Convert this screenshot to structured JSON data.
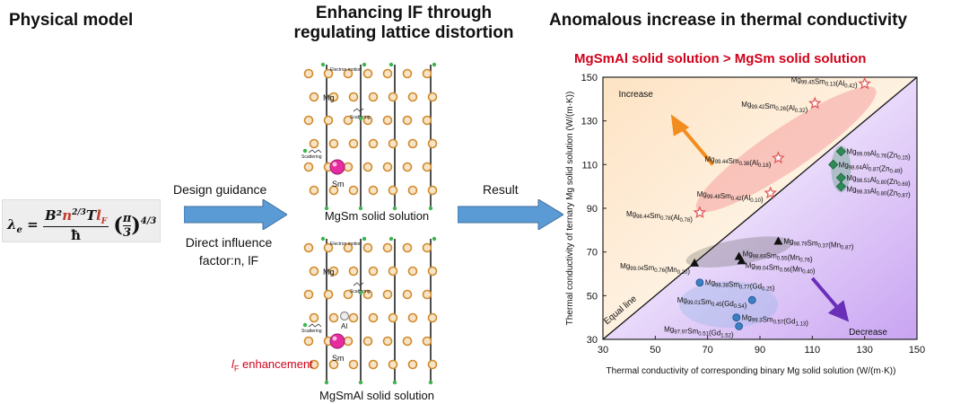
{
  "headers": {
    "physical_model": "Physical model",
    "enhancing_line1": "Enhancing lF through",
    "enhancing_line2": "regulating lattice distortion",
    "anomalous": "Anomalous increase in thermal conductivity"
  },
  "formula": {
    "lhs": "λe",
    "rhs": "= B²n^(2/3)TlF / ħ · (π/3)^(4/3)"
  },
  "flow": {
    "design_guidance": "Design guidance",
    "direct_influence_line1": "Direct influence",
    "direct_influence_line2": "factor:n, lF",
    "result": "Result"
  },
  "lattice": {
    "top_caption": "MgSm solid solution",
    "bottom_caption": "MgSmAl solid solution",
    "electron_motion": "Electron motion",
    "mg": "Mg",
    "sm": "Sm",
    "al": "Al",
    "scattering": "Scattering",
    "lf_enhancement": "lF enhancement"
  },
  "comparison_title": "MgSmAl solid solution > MgSm solid solution",
  "chart_data": {
    "type": "scatter",
    "xlabel": "Thermal conductivity of corresponding binary Mg solid solution (W/(m·K))",
    "ylabel": "Thermal conductivity of ternary Mg solid solution (W/(m·K))",
    "xlim": [
      30,
      150
    ],
    "ylim": [
      30,
      150
    ],
    "xticks": [
      30,
      50,
      70,
      90,
      110,
      130,
      150
    ],
    "yticks": [
      30,
      50,
      70,
      90,
      110,
      130,
      150
    ],
    "annotations": {
      "increase": "Increase",
      "decrease": "Decrease",
      "equal_line": "Equal line"
    },
    "groups": [
      {
        "element": "Al",
        "marker": "star",
        "color": "#e05a5a",
        "points": [
          {
            "x": 130,
            "y": 147,
            "label": "Mg99.45Sm0.13(Al0.42)"
          },
          {
            "x": 111,
            "y": 138,
            "label": "Mg99.42Sm0.26(Al0.32)"
          },
          {
            "x": 97,
            "y": 113,
            "label": "Mg99.44Sm0.38(Al0.18)"
          },
          {
            "x": 94,
            "y": 97,
            "label": "Mg99.48Sm0.42(Al0.10)"
          },
          {
            "x": 67,
            "y": 88,
            "label": "Mg98.44Sm0.78(Al0.78)"
          }
        ]
      },
      {
        "element": "Zn",
        "marker": "diamond",
        "color": "#2e8b57",
        "points": [
          {
            "x": 121,
            "y": 116,
            "label": "Mg99.09Al0.76(Zn0.15)"
          },
          {
            "x": 118,
            "y": 110,
            "label": "Mg98.64Al0.87(Zn0.49)"
          },
          {
            "x": 121,
            "y": 104,
            "label": "Mg98.51Al0.80(Zn0.69)"
          },
          {
            "x": 121,
            "y": 100,
            "label": "Mg98.33Al0.80(Zn0.87)"
          }
        ]
      },
      {
        "element": "Mn",
        "marker": "triangle",
        "color": "#111111",
        "points": [
          {
            "x": 97,
            "y": 75,
            "label": "Mg98.79Sm0.37(Mn0.87)"
          },
          {
            "x": 82,
            "y": 68,
            "label": "Mg98.69Sm0.55(Mn0.76)"
          },
          {
            "x": 83,
            "y": 66,
            "label": "Mg99.04Sm0.56(Mn0.40)"
          },
          {
            "x": 65,
            "y": 65,
            "label": "Mg99.04Sm0.76(Mn0.20)"
          }
        ]
      },
      {
        "element": "Gd",
        "marker": "circle",
        "color": "#3b7fc4",
        "points": [
          {
            "x": 67,
            "y": 56,
            "label": "Mg98.38Sm0.77(Gd0.25)"
          },
          {
            "x": 87,
            "y": 48,
            "label": "Mg99.01Sm0.45(Gd0.54)"
          },
          {
            "x": 81,
            "y": 40,
            "label": "Mg99.3Sm0.57(Gd1.13)"
          },
          {
            "x": 82,
            "y": 36,
            "label": "Mg97.97Sm0.51(Gd1.52)"
          }
        ]
      }
    ]
  }
}
